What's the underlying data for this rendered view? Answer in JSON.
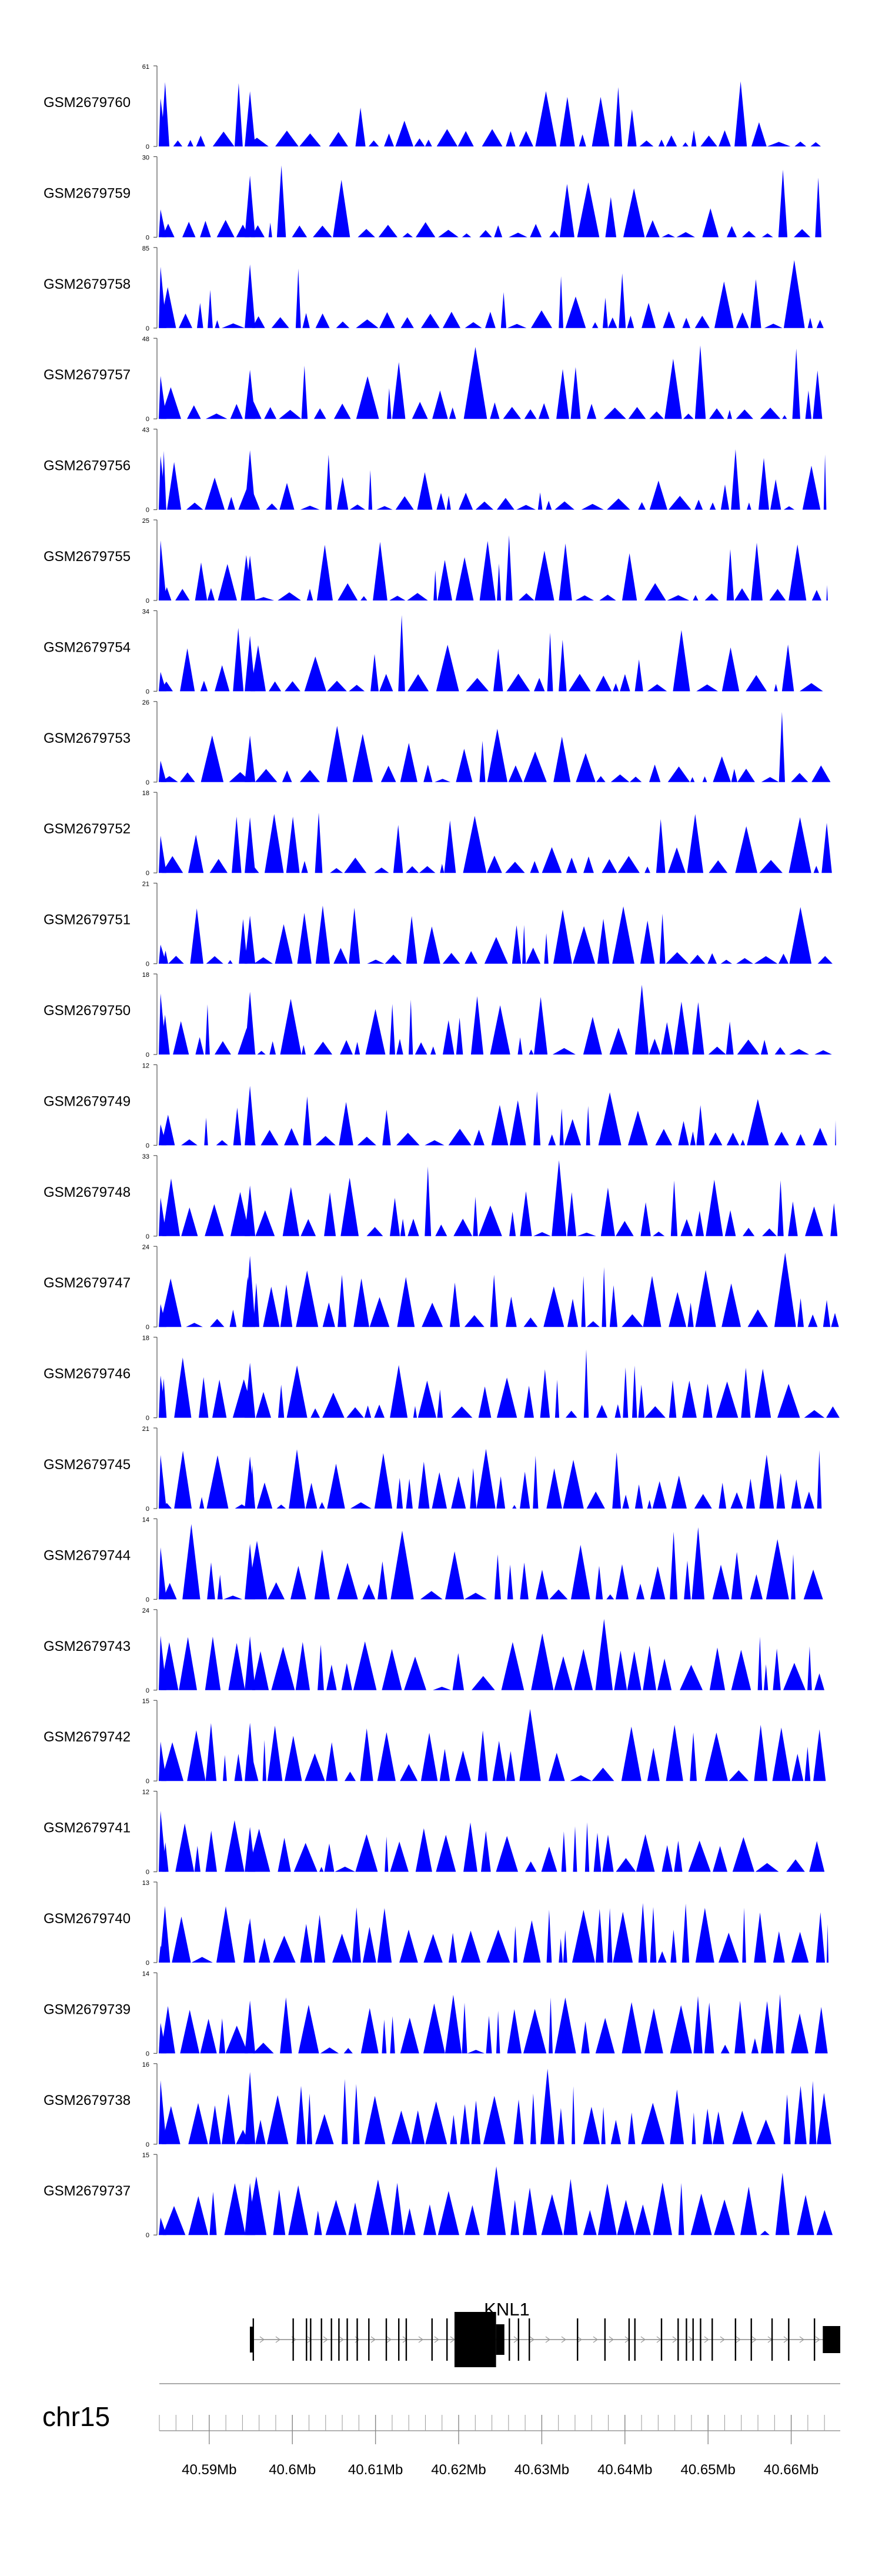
{
  "chart_data": {
    "type": "area",
    "fill_color": "#0000ff",
    "x_range_mb": [
      40.584,
      40.6659
    ],
    "tracks": [
      {
        "name": "GSM2679760",
        "ymax": 61
      },
      {
        "name": "GSM2679759",
        "ymax": 30
      },
      {
        "name": "GSM2679758",
        "ymax": 85
      },
      {
        "name": "GSM2679757",
        "ymax": 48
      },
      {
        "name": "GSM2679756",
        "ymax": 43
      },
      {
        "name": "GSM2679755",
        "ymax": 25
      },
      {
        "name": "GSM2679754",
        "ymax": 34
      },
      {
        "name": "GSM2679753",
        "ymax": 26
      },
      {
        "name": "GSM2679752",
        "ymax": 18
      },
      {
        "name": "GSM2679751",
        "ymax": 21
      },
      {
        "name": "GSM2679750",
        "ymax": 18
      },
      {
        "name": "GSM2679749",
        "ymax": 12
      },
      {
        "name": "GSM2679748",
        "ymax": 33
      },
      {
        "name": "GSM2679747",
        "ymax": 24
      },
      {
        "name": "GSM2679746",
        "ymax": 18
      },
      {
        "name": "GSM2679745",
        "ymax": 21
      },
      {
        "name": "GSM2679744",
        "ymax": 14
      },
      {
        "name": "GSM2679743",
        "ymax": 24
      },
      {
        "name": "GSM2679742",
        "ymax": 15
      },
      {
        "name": "GSM2679741",
        "ymax": 12
      },
      {
        "name": "GSM2679740",
        "ymax": 13
      },
      {
        "name": "GSM2679739",
        "ymax": 14
      },
      {
        "name": "GSM2679738",
        "ymax": 16
      },
      {
        "name": "GSM2679737",
        "ymax": 15
      }
    ],
    "y_min_label": "0",
    "gene": {
      "name": "KNL1",
      "start_mb": 40.5951,
      "end_mb": 40.6659,
      "strand": "+",
      "exons_mb": [
        40.5953,
        40.6001,
        40.6017,
        40.6022,
        40.6035,
        40.6047,
        40.6056,
        40.6066,
        40.6078,
        40.6092,
        40.6113,
        40.6128,
        40.6137,
        40.6168,
        40.6186,
        40.6261,
        40.6272,
        40.6285,
        40.6343,
        40.6376,
        40.6405,
        40.6412,
        40.6444,
        40.6464,
        40.6474,
        40.6482,
        40.6491,
        40.6505,
        40.6533,
        40.6552,
        40.6577,
        40.6597,
        40.6628
      ],
      "big_exons_mb": [
        [
          40.6195,
          40.6245
        ],
        [
          40.6245,
          40.6255
        ],
        [
          40.6638,
          40.6659
        ]
      ]
    },
    "chromosome": "chr15",
    "major_ticks": [
      {
        "mb": 40.59,
        "label": "40.59Mb"
      },
      {
        "mb": 40.6,
        "label": "40.6Mb"
      },
      {
        "mb": 40.61,
        "label": "40.61Mb"
      },
      {
        "mb": 40.62,
        "label": "40.62Mb"
      },
      {
        "mb": 40.63,
        "label": "40.63Mb"
      },
      {
        "mb": 40.64,
        "label": "40.64Mb"
      },
      {
        "mb": 40.65,
        "label": "40.65Mb"
      },
      {
        "mb": 40.66,
        "label": "40.66Mb"
      }
    ],
    "minor_tick_step_mb": 0.002
  }
}
